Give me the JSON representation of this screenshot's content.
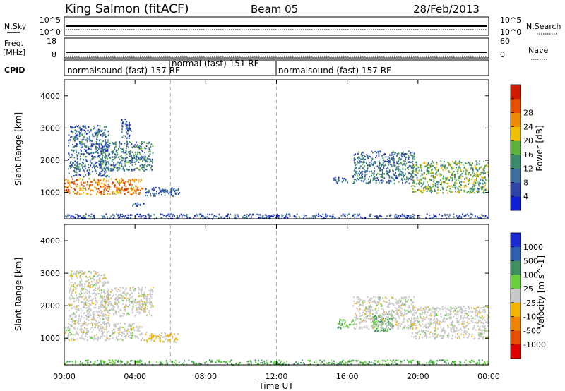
{
  "header": {
    "station": "King Salmon (fitACF)",
    "beam": "Beam 05",
    "date": "28/Feb/2013"
  },
  "noise_panel": {
    "left_label": "N.Sky",
    "left_ticks": [
      "10^5",
      "10^0"
    ],
    "right_ticks": [
      "10^5",
      "10^0"
    ],
    "right_label": "N.Search"
  },
  "freq_panel": {
    "left_label_1": "Freq.",
    "left_label_2": "[MHz]",
    "left_ticks": [
      "18",
      "8"
    ],
    "right_ticks": [
      "60",
      "0"
    ],
    "right_label": "Nave"
  },
  "cpid_panel": {
    "label": "CPID",
    "segments": [
      {
        "text": "normalsound (fast) 157 RF",
        "start_hour": 0,
        "end_hour": 6
      },
      {
        "text": "normal (fast) 151 RF",
        "start_hour": 6,
        "end_hour": 12
      },
      {
        "text": "normalsound (fast) 157 RF",
        "start_hour": 12,
        "end_hour": 24
      }
    ]
  },
  "axes": {
    "xlabel": "Time UT",
    "x_ticks": [
      "00:00",
      "04:00",
      "08:00",
      "12:00",
      "16:00",
      "20:00",
      "00:00"
    ],
    "ylabel": "Slant Range [km]",
    "y_ticks": [
      "1000",
      "2000",
      "3000",
      "4000"
    ]
  },
  "power_scale": {
    "label": "Power [dB]",
    "ticks": [
      "4",
      "8",
      "12",
      "16",
      "20",
      "24",
      "28"
    ],
    "colors": [
      "#0f1fd6",
      "#2e44a8",
      "#3c6fa0",
      "#3b8c6a",
      "#5fb33a",
      "#f0c000",
      "#f08a00",
      "#e85000",
      "#d11a00"
    ]
  },
  "velocity_scale": {
    "label": "Velocity [m s^-1]",
    "ticks": [
      "1000",
      "500",
      "100",
      "25",
      "-25",
      "-100",
      "-500",
      "-1000"
    ],
    "colors": [
      "#1a2bd6",
      "#2e5fb0",
      "#3f8f5f",
      "#67cf39",
      "#c8c8c8",
      "#f3b400",
      "#ef8400",
      "#e85000",
      "#e00000"
    ]
  },
  "chart_data": {
    "type": "heatmap",
    "title": "King Salmon (fitACF)   Beam 05   28/Feb/2013",
    "xlabel": "Time UT",
    "ylabel": "Slant Range [km]",
    "xlim": [
      0,
      24
    ],
    "ylim": [
      180,
      4500
    ],
    "x_ticks_hours": [
      0,
      4,
      8,
      12,
      16,
      20,
      24
    ],
    "y_ticks_km": [
      1000,
      2000,
      3000,
      4000
    ],
    "mode_change_hours": [
      6,
      12
    ],
    "panels": [
      {
        "quantity": "Power",
        "unit": "dB",
        "range": [
          0,
          30
        ],
        "regions": [
          {
            "t0": 0.0,
            "t1": 4.4,
            "r0": 950,
            "r1": 1450,
            "value": 22
          },
          {
            "t0": 0.2,
            "t1": 2.5,
            "r0": 1500,
            "r1": 3100,
            "value": 8
          },
          {
            "t0": 2.0,
            "t1": 5.0,
            "r0": 1700,
            "r1": 2600,
            "value": 10
          },
          {
            "t0": 3.2,
            "t1": 3.8,
            "r0": 2700,
            "r1": 3300,
            "value": 6
          },
          {
            "t0": 4.5,
            "t1": 6.5,
            "r0": 900,
            "r1": 1200,
            "value": 7
          },
          {
            "t0": 3.8,
            "t1": 4.5,
            "r0": 600,
            "r1": 700,
            "value": 6
          },
          {
            "t0": 15.2,
            "t1": 16.0,
            "r0": 1300,
            "r1": 1500,
            "value": 7
          },
          {
            "t0": 16.3,
            "t1": 19.8,
            "r0": 1300,
            "r1": 2300,
            "value": 9
          },
          {
            "t0": 19.6,
            "t1": 24.0,
            "r0": 1000,
            "r1": 2000,
            "value": 14
          },
          {
            "t0": 0.0,
            "t1": 24.0,
            "r0": 200,
            "r1": 350,
            "value": 5
          }
        ]
      },
      {
        "quantity": "Velocity",
        "unit": "m s^-1",
        "range": [
          -1000,
          1000
        ],
        "regions": [
          {
            "t0": 0.0,
            "t1": 4.4,
            "r0": 950,
            "r1": 1500,
            "value": 0
          },
          {
            "t0": 0.2,
            "t1": 2.5,
            "r0": 1500,
            "r1": 3100,
            "value": 0
          },
          {
            "t0": 2.0,
            "t1": 5.0,
            "r0": 1700,
            "r1": 2600,
            "value": 0
          },
          {
            "t0": 4.5,
            "t1": 6.5,
            "r0": 900,
            "r1": 1200,
            "value": -30
          },
          {
            "t0": 15.4,
            "t1": 16.3,
            "r0": 1300,
            "r1": 1600,
            "value": 100
          },
          {
            "t0": 17.4,
            "t1": 18.6,
            "r0": 1200,
            "r1": 1800,
            "value": 100
          },
          {
            "t0": 16.3,
            "t1": 19.8,
            "r0": 1300,
            "r1": 2300,
            "value": 0
          },
          {
            "t0": 19.6,
            "t1": 24.0,
            "r0": 1000,
            "r1": 2000,
            "value": 0
          },
          {
            "t0": 0.0,
            "t1": 24.0,
            "r0": 200,
            "r1": 350,
            "value": 100
          }
        ]
      }
    ]
  }
}
